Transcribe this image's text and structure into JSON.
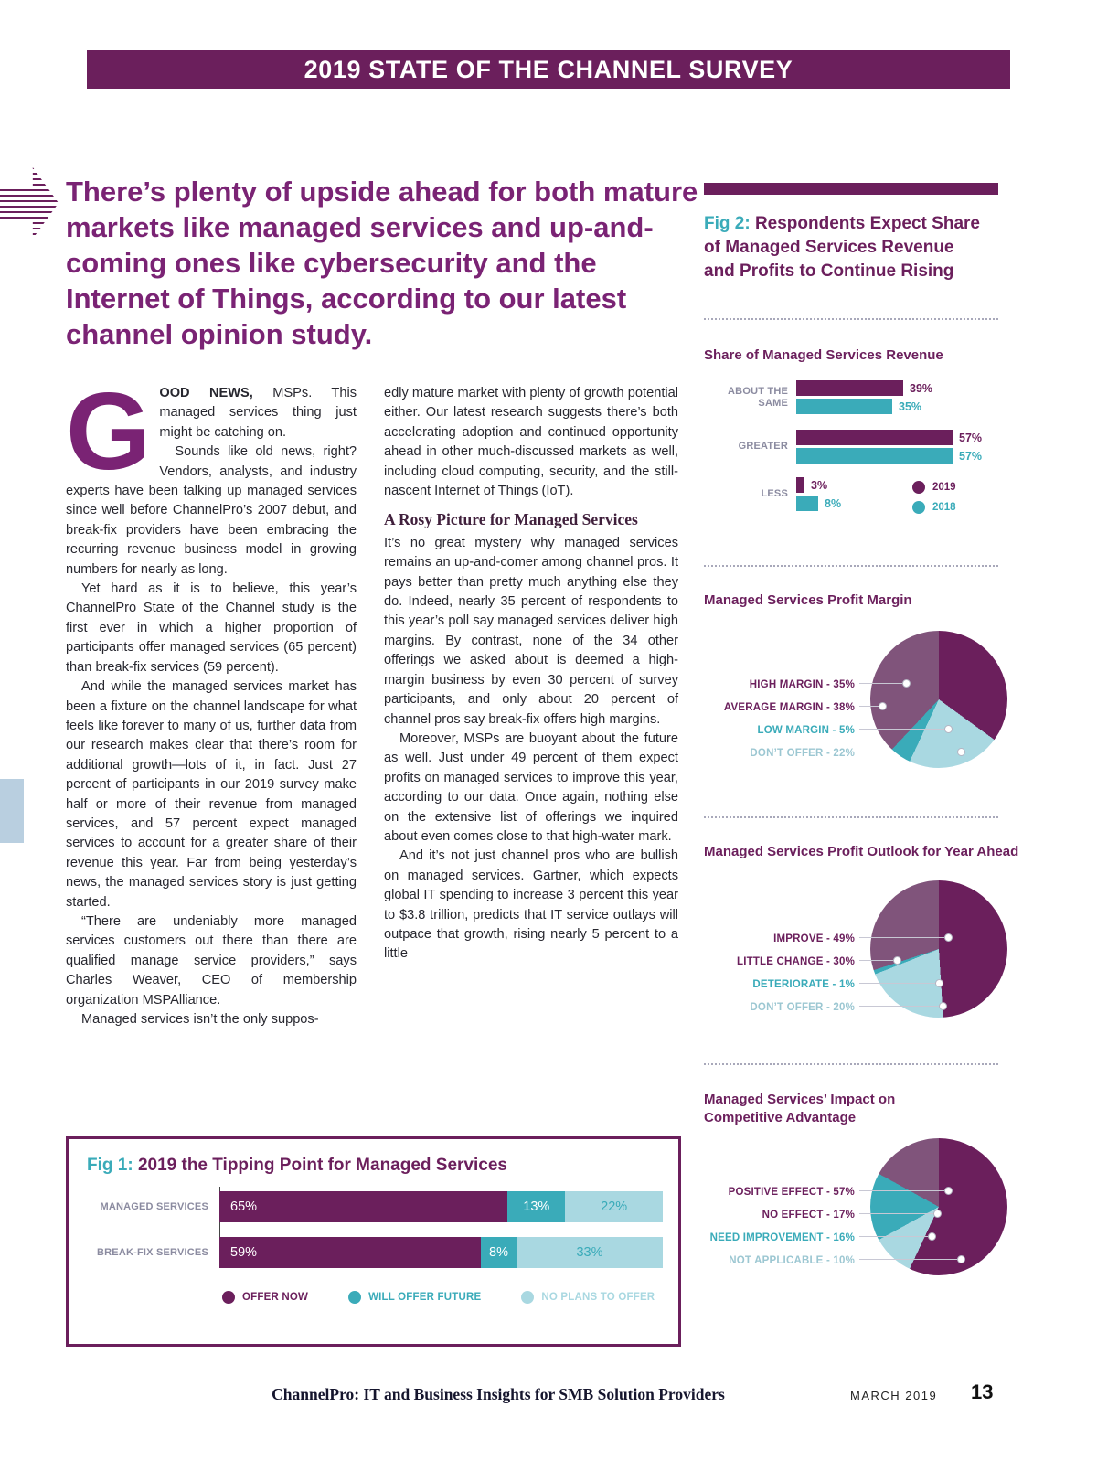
{
  "banner": {
    "text": "2019 STATE OF THE CHANNEL SURVEY"
  },
  "headline": "There’s plenty of upside ahead for both mature markets like managed services and up-and-coming ones like cybersecurity and the Internet of Things, according to our latest channel opinion study.",
  "article": {
    "dropcap": "G",
    "lead_bold": "OOD NEWS,",
    "lead_rest": " MSPs. This managed services thing just might be catching on.",
    "col1_p2": "Sounds like old news, right? Vendors, analysts, and industry experts have been talking up managed services since well before ChannelPro’s 2007 debut, and break-fix providers have been embracing the recurring revenue business model in growing numbers for nearly as long.",
    "col1_p3": "Yet hard as it is to believe, this year’s ChannelPro State of the Channel study is the first ever in which a higher proportion of participants offer managed services (65 percent) than break-fix services (59 percent).",
    "col1_p4": "And while the managed services market has been a fixture on the channel landscape for what feels like forever to many of us, further data from our research makes clear that there’s room for additional growth—lots of it, in fact. Just 27 percent of participants in our 2019 survey make half or more of their revenue from managed services, and 57 percent expect managed services to account for a greater share of their revenue this year. Far from being yesterday’s news, the managed services story is just getting started.",
    "col1_p5": "“There are undeniably more managed services customers out there than there are qualified manage service providers,” says Charles Weaver, CEO of membership organization MSPAlliance.",
    "col1_p6": "Managed services isn’t the only suppos-",
    "col2_p1": "edly mature market with plenty of growth potential either. Our latest research suggests there’s both accelerating adoption and continued opportunity ahead in other much-discussed markets as well, including cloud computing, security, and the still-nascent Internet of Things (IoT).",
    "subhead": "A Rosy Picture for Managed Services",
    "col2_p2": "It’s no great mystery why managed services remains an up-and-comer among channel pros. It pays better than pretty much anything else they do. Indeed, nearly 35 percent of respondents to this year’s poll say managed services deliver high margins. By contrast, none of the 34 other offerings we asked about is deemed a high-margin business by even 30 percent of survey participants, and only about 20 percent of channel pros say break-fix offers high margins.",
    "col2_p3": "Moreover, MSPs are buoyant about the future as well. Just under 49 percent of them expect profits on managed services to improve this year, according to our data. Once again, nothing else on the extensive list of offerings we inquired about even comes close to that high-water mark.",
    "col2_p4": "And it’s not just channel pros who are bullish on managed services. Gartner, which expects global IT spending to increase 3 percent this year to $3.8 trillion, predicts that IT service outlays will outpace that growth, rising nearly 5 percent to a little"
  },
  "fig2": {
    "prefix": "Fig 2: ",
    "title": "Respondents Expect Share of Managed Services Revenue and Profits to Continue Rising"
  },
  "fig1": {
    "prefix": "Fig 1: ",
    "title": "2019 the Tipping Point for Managed Services"
  },
  "footer": {
    "center": "ChannelPro: IT and Business Insights for SMB Solution Providers",
    "date": "MARCH 2019",
    "page": "13"
  },
  "colors": {
    "purple": "#6b1f5c",
    "headline_purple": "#7a2374",
    "teal": "#3aabb9",
    "light_blue": "#a9d8e1",
    "mauve": "#80547b"
  },
  "chart_data": [
    {
      "type": "bar",
      "title": "Share of Managed Services Revenue",
      "categories": [
        "ABOUT THE SAME",
        "GREATER",
        "LESS"
      ],
      "series": [
        {
          "name": "2019",
          "color": "#6b1f5c",
          "values": [
            39,
            57,
            3
          ]
        },
        {
          "name": "2018",
          "color": "#3aabb9",
          "values": [
            35,
            57,
            8
          ]
        }
      ],
      "value_labels": [
        [
          "39%",
          "35%"
        ],
        [
          "57%",
          "57%"
        ],
        [
          "3%",
          "8%"
        ]
      ],
      "xlim": [
        0,
        60
      ],
      "legend_position": "right"
    },
    {
      "type": "pie",
      "pies": [
        {
          "title": "Managed Services Profit Margin",
          "labels": [
            "HIGH MARGIN - 35%",
            "AVERAGE MARGIN - 38%",
            "LOW MARGIN - 5%",
            "DON’T OFFER - 22%"
          ],
          "values": [
            35,
            38,
            5,
            22
          ],
          "colors": [
            "#6b1f5c",
            "#80547b",
            "#3aabb9",
            "#a9d8e1"
          ],
          "draw_order": [
            0,
            3,
            2,
            1
          ]
        },
        {
          "title": "Managed Services Profit Outlook for Year Ahead",
          "labels": [
            "IMPROVE - 49%",
            "LITTLE CHANGE - 30%",
            "DETERIORATE - 1%",
            "DON’T OFFER - 20%"
          ],
          "values": [
            49,
            30,
            1,
            20
          ],
          "colors": [
            "#6b1f5c",
            "#80547b",
            "#3aabb9",
            "#a9d8e1"
          ],
          "draw_order": [
            0,
            3,
            2,
            1
          ]
        },
        {
          "title": "Managed Services’ Impact on Competitive Advantage",
          "labels": [
            "POSITIVE EFFECT - 57%",
            "NO EFFECT - 17%",
            "NEED IMPROVEMENT - 16%",
            "NOT APPLICABLE - 10%"
          ],
          "values": [
            57,
            17,
            16,
            10
          ],
          "colors": [
            "#6b1f5c",
            "#80547b",
            "#3aabb9",
            "#a9d8e1"
          ],
          "draw_order": [
            0,
            3,
            2,
            1
          ]
        }
      ]
    },
    {
      "type": "stacked-bar",
      "title": "2019 the Tipping Point for Managed Services",
      "colors": [
        "#6b1f5c",
        "#3aabb9",
        "#a9d8e1"
      ],
      "rows": [
        {
          "label": "MANAGED SERVICES",
          "values": [
            65,
            13,
            22
          ],
          "value_labels": [
            "65%",
            "13%",
            "22%"
          ]
        },
        {
          "label": "BREAK-FIX SERVICES",
          "values": [
            59,
            8,
            33
          ],
          "value_labels": [
            "59%",
            "8%",
            "33%"
          ]
        }
      ],
      "legend": [
        "OFFER NOW",
        "WILL OFFER FUTURE",
        "NO PLANS TO OFFER"
      ]
    }
  ]
}
